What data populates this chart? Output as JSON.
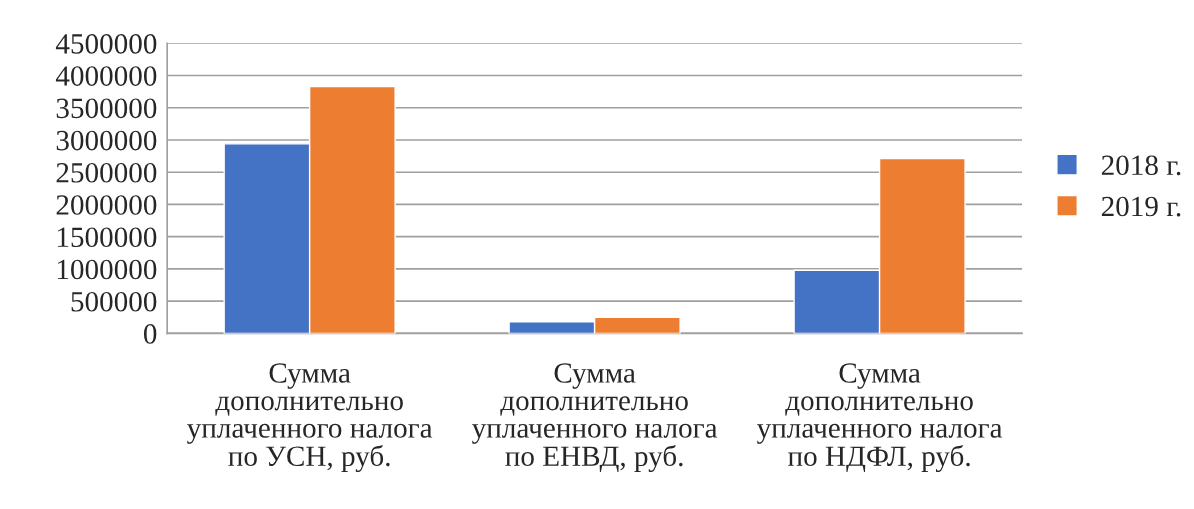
{
  "chart_data": {
    "type": "bar",
    "categories": [
      "Сумма дополнительно уплаченного налога по УСН, руб.",
      "Сумма дополнительно уплаченного налога по ЕНВД, руб.",
      "Сумма дополнительно уплаченного налога по НДФЛ, руб."
    ],
    "series": [
      {
        "name": "2018 г.",
        "color": "#4472c4",
        "values": [
          2940000,
          180000,
          980000
        ]
      },
      {
        "name": "2019 г.",
        "color": "#ed7d31",
        "values": [
          3830000,
          250000,
          2710000
        ]
      }
    ],
    "ylim": [
      0,
      4500000
    ],
    "yticks": [
      0,
      500000,
      1000000,
      1500000,
      2000000,
      2500000,
      3000000,
      3500000,
      4000000,
      4500000
    ],
    "grid": "y",
    "legend": "right"
  }
}
